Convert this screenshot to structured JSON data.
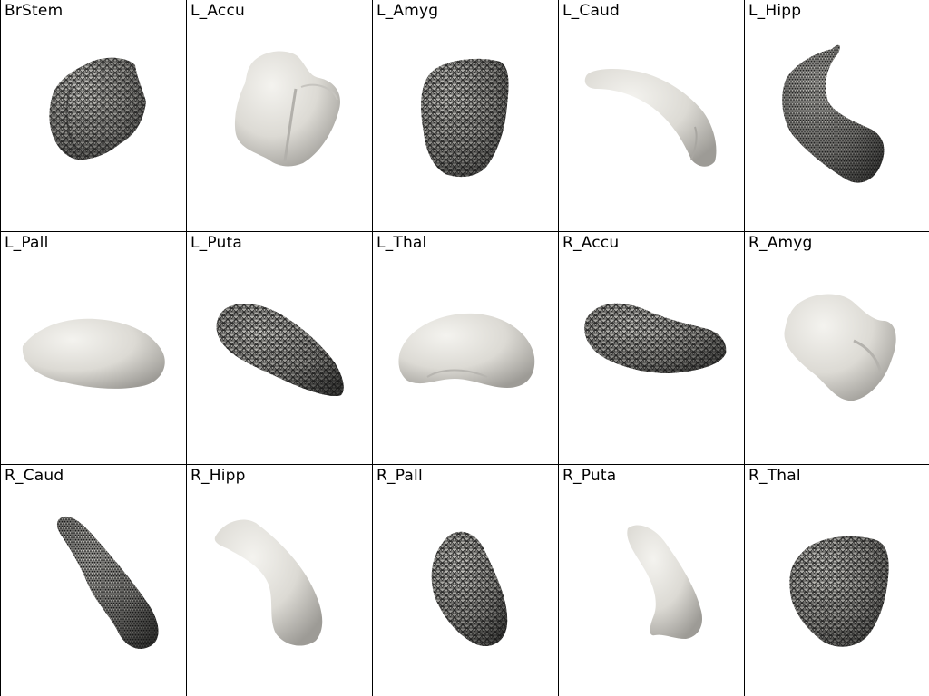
{
  "structures": [
    {
      "label": "BrStem",
      "icon": "brainstem-mesh-icon",
      "style": "wireframe"
    },
    {
      "label": "L_Accu",
      "icon": "accumbens-mesh-icon",
      "style": "smooth"
    },
    {
      "label": "L_Amyg",
      "icon": "amygdala-mesh-icon",
      "style": "wireframe"
    },
    {
      "label": "L_Caud",
      "icon": "caudate-mesh-icon",
      "style": "smooth"
    },
    {
      "label": "L_Hipp",
      "icon": "hippocampus-mesh-icon",
      "style": "wireframe"
    },
    {
      "label": "L_Pall",
      "icon": "pallidum-mesh-icon",
      "style": "smooth"
    },
    {
      "label": "L_Puta",
      "icon": "putamen-mesh-icon",
      "style": "wireframe"
    },
    {
      "label": "L_Thal",
      "icon": "thalamus-mesh-icon",
      "style": "smooth"
    },
    {
      "label": "R_Accu",
      "icon": "accumbens-mesh-icon",
      "style": "wireframe"
    },
    {
      "label": "R_Amyg",
      "icon": "amygdala-mesh-icon",
      "style": "smooth"
    },
    {
      "label": "R_Caud",
      "icon": "caudate-mesh-icon",
      "style": "wireframe"
    },
    {
      "label": "R_Hipp",
      "icon": "hippocampus-mesh-icon",
      "style": "smooth"
    },
    {
      "label": "R_Pall",
      "icon": "pallidum-mesh-icon",
      "style": "wireframe"
    },
    {
      "label": "R_Puta",
      "icon": "putamen-mesh-icon",
      "style": "smooth"
    },
    {
      "label": "R_Thal",
      "icon": "thalamus-mesh-icon",
      "style": "wireframe"
    }
  ],
  "colors": {
    "mesh_fill": "#e4e2dc",
    "mesh_shade": "#a9a7a2",
    "wire_line": "#141414",
    "grid_line": "#000000",
    "background": "#ffffff"
  }
}
